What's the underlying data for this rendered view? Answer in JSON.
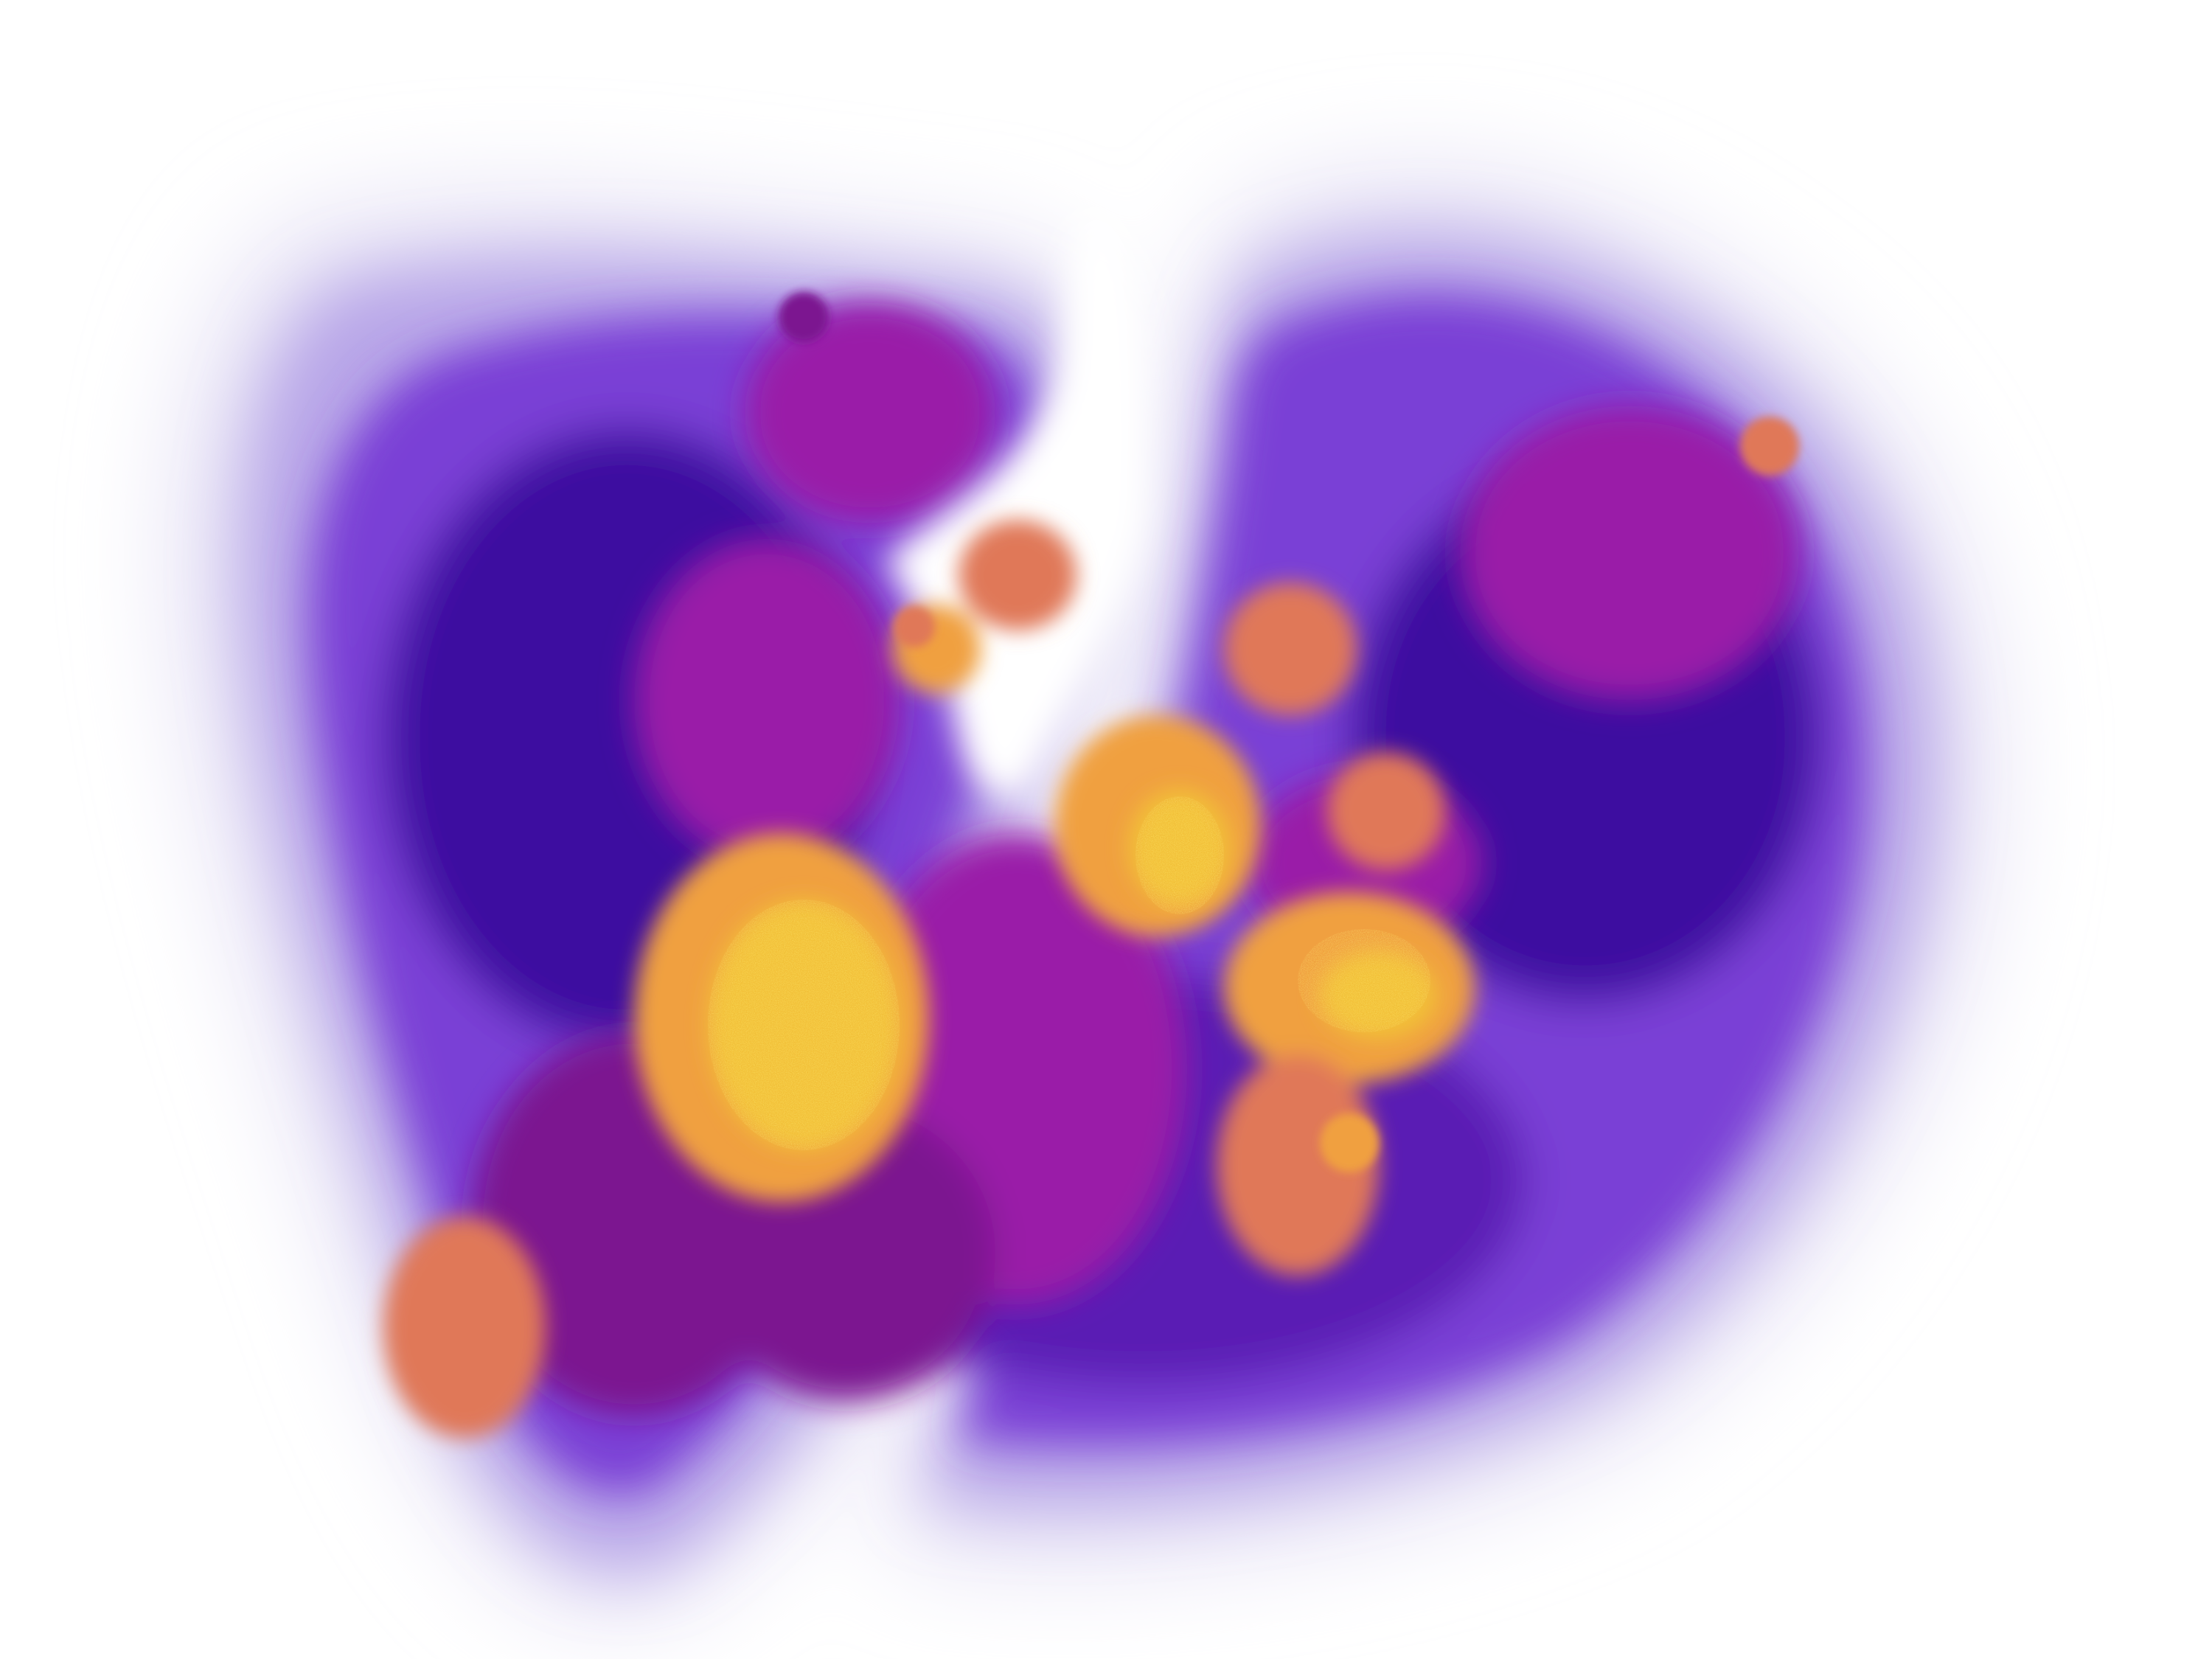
{
  "image": {
    "kind": "density-visualization",
    "background_color": "#ffffff",
    "palette": {
      "halo": "#e4e0f4",
      "outer": "#b8a6e8",
      "body_light": "#7a3fd6",
      "body": "#5a1cb4",
      "body_deep": "#3c10a0",
      "magenta": "#9a1fa8",
      "magenta_deep": "#7c1490",
      "orange": "#e07858",
      "orange_bright": "#f0a040",
      "yellow": "#f2c038",
      "yellow_hot": "#f5d23a"
    },
    "text": []
  }
}
